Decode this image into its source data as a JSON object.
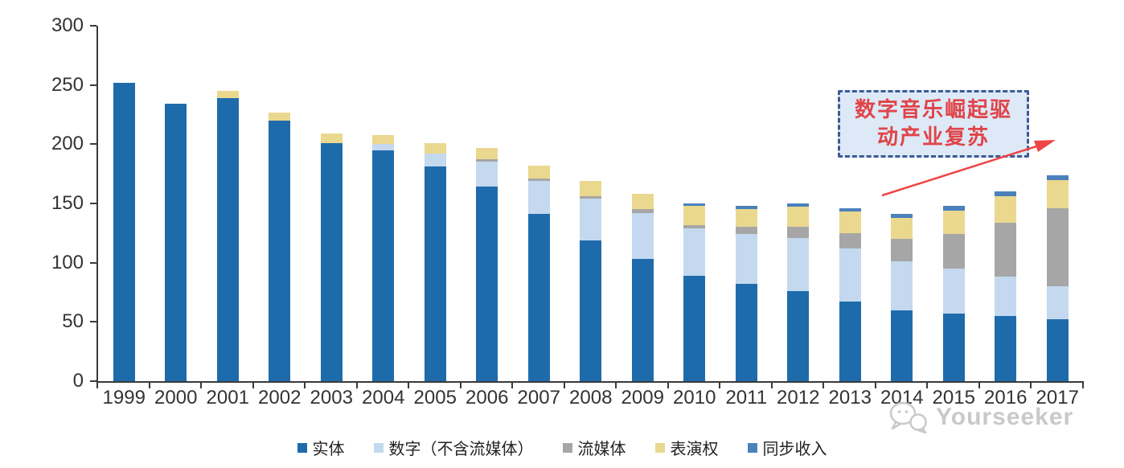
{
  "chart_data": {
    "type": "bar",
    "stacked": true,
    "title": "",
    "xlabel": "",
    "ylabel": "",
    "categories": [
      "1999",
      "2000",
      "2001",
      "2002",
      "2003",
      "2004",
      "2005",
      "2006",
      "2007",
      "2008",
      "2009",
      "2010",
      "2011",
      "2012",
      "2013",
      "2014",
      "2015",
      "2016",
      "2017"
    ],
    "series": [
      {
        "name": "实体",
        "color": "#1E6BAC",
        "values": [
          252,
          234,
          239,
          220,
          201,
          195,
          181,
          164,
          141,
          119,
          103,
          89,
          82,
          76,
          67,
          60,
          57,
          55,
          52
        ]
      },
      {
        "name": "数字（不含流媒体）",
        "color": "#C4D9EF",
        "values": [
          0,
          0,
          0,
          0,
          0,
          5,
          11,
          21,
          28,
          35,
          39,
          40,
          42,
          45,
          45,
          41,
          38,
          33,
          28
        ]
      },
      {
        "name": "流媒体",
        "color": "#A6A6A6",
        "values": [
          0,
          0,
          0,
          0,
          0,
          0,
          0,
          2,
          2,
          2,
          3,
          3,
          6,
          9,
          13,
          19,
          29,
          46,
          66
        ]
      },
      {
        "name": "表演权",
        "color": "#EBD88F",
        "values": [
          0,
          0,
          6,
          7,
          8,
          8,
          9,
          10,
          11,
          13,
          13,
          16,
          15,
          17,
          18,
          18,
          20,
          22,
          24
        ]
      },
      {
        "name": "同步收入",
        "color": "#4A81BB",
        "values": [
          0,
          0,
          0,
          0,
          0,
          0,
          0,
          0,
          0,
          0,
          0,
          2,
          3,
          3,
          3,
          3,
          4,
          4,
          4
        ]
      }
    ],
    "ylim": [
      0,
      300
    ],
    "yticks": [
      0,
      50,
      100,
      150,
      200,
      250,
      300
    ],
    "grid": false,
    "legend_position": "bottom",
    "axis_color": "#3a3a3a",
    "label_color": "#333333"
  },
  "annotation": {
    "line1": "数字音乐崛起驱",
    "line2": "动产业复苏",
    "text_color": "#E04448",
    "box_fill": "#DDE9F7",
    "border_color": "#3D5A96",
    "arrow_color": "#EF4545"
  },
  "watermark": {
    "icon": "wechat-icon",
    "text": "Yourseeker",
    "color": "#C9C9C9"
  }
}
